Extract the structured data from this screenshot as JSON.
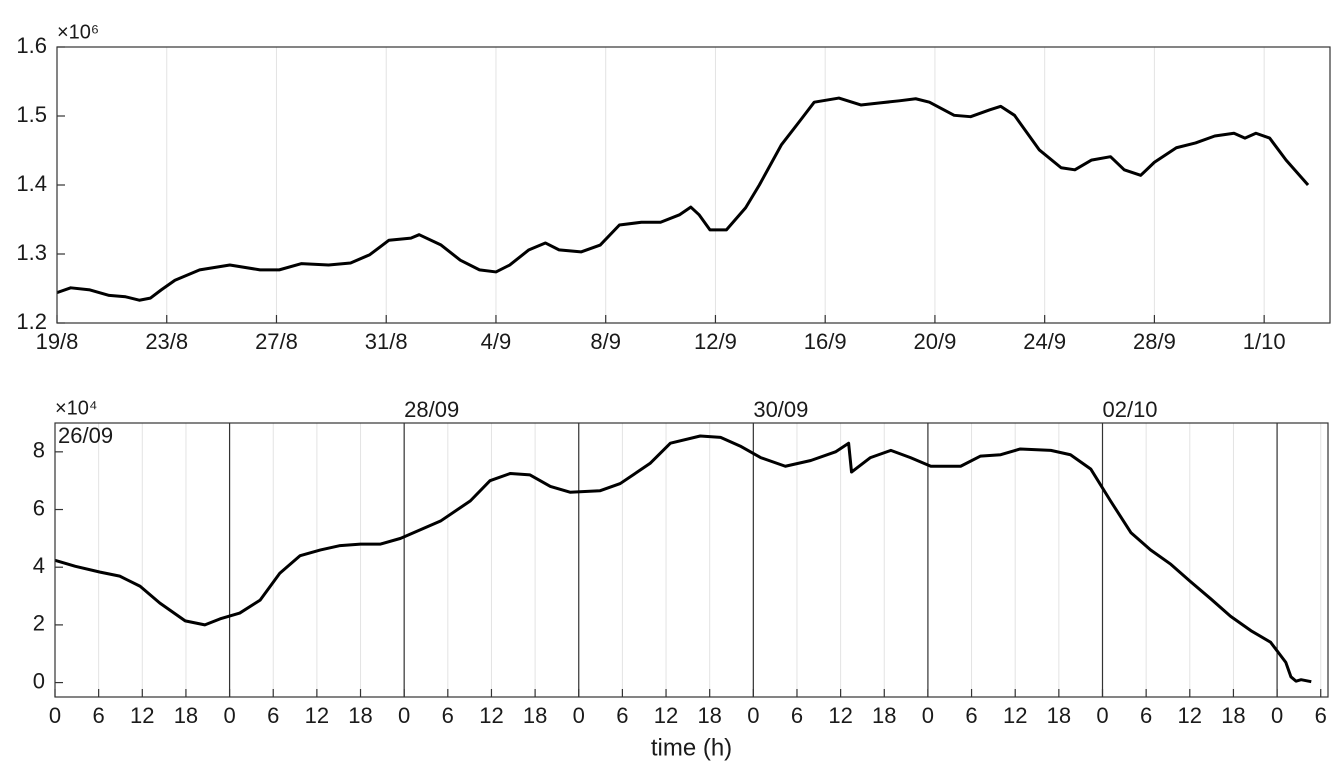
{
  "chart_data": [
    {
      "type": "line",
      "y_exponent_label": "×10⁶",
      "grid": "x",
      "xlim": [
        0,
        46.4
      ],
      "ylim": [
        1200000,
        1600000
      ],
      "xticks": [
        {
          "value": 0,
          "label": "19/8"
        },
        {
          "value": 4,
          "label": "23/8"
        },
        {
          "value": 8,
          "label": "27/8"
        },
        {
          "value": 12,
          "label": "31/8"
        },
        {
          "value": 16,
          "label": "4/9"
        },
        {
          "value": 20,
          "label": "8/9"
        },
        {
          "value": 24,
          "label": "12/9"
        },
        {
          "value": 28,
          "label": "16/9"
        },
        {
          "value": 32,
          "label": "20/9"
        },
        {
          "value": 36,
          "label": "24/9"
        },
        {
          "value": 40,
          "label": "28/9"
        },
        {
          "value": 44,
          "label": "1/10"
        }
      ],
      "yticks": [
        {
          "value": 1200000,
          "label": "1.2"
        },
        {
          "value": 1300000,
          "label": "1.3"
        },
        {
          "value": 1400000,
          "label": "1.4"
        },
        {
          "value": 1500000,
          "label": "1.5"
        },
        {
          "value": 1600000,
          "label": "1.6"
        }
      ],
      "x": [
        0,
        0.5,
        1.2,
        1.9,
        2.5,
        3.0,
        3.4,
        3.8,
        4.3,
        5.2,
        6.3,
        7.4,
        8.1,
        8.9,
        9.9,
        10.7,
        11.4,
        12.1,
        12.9,
        13.2,
        14.0,
        14.7,
        15.4,
        16.0,
        16.5,
        17.2,
        17.8,
        18.3,
        19.1,
        19.8,
        20.5,
        21.3,
        22.0,
        22.7,
        23.1,
        23.4,
        23.8,
        24.4,
        25.1,
        25.6,
        26.4,
        27.1,
        27.6,
        28.5,
        29.3,
        30.0,
        30.7,
        31.3,
        31.8,
        32.7,
        33.3,
        34.0,
        34.4,
        34.9,
        35.8,
        36.6,
        37.1,
        37.7,
        38.4,
        38.9,
        39.5,
        40.0,
        40.8,
        41.5,
        42.2,
        42.9,
        43.3,
        43.7,
        44.2,
        44.8,
        45.6
      ],
      "series": [
        {
          "color": "#000000",
          "values": [
            1244000,
            1251000,
            1248000,
            1240000,
            1238000,
            1233000,
            1236000,
            1248000,
            1262000,
            1277000,
            1284000,
            1277000,
            1277000,
            1286000,
            1284000,
            1287000,
            1299000,
            1320000,
            1323000,
            1328000,
            1313000,
            1291000,
            1277000,
            1274000,
            1284000,
            1306000,
            1316000,
            1306000,
            1303000,
            1313000,
            1342000,
            1346000,
            1346000,
            1357000,
            1368000,
            1357000,
            1335000,
            1335000,
            1367000,
            1400000,
            1458000,
            1494000,
            1520000,
            1526000,
            1516000,
            1519000,
            1522000,
            1525000,
            1520000,
            1501000,
            1499000,
            1509000,
            1514000,
            1501000,
            1451000,
            1425000,
            1422000,
            1436000,
            1441000,
            1422000,
            1414000,
            1433000,
            1454000,
            1461000,
            1471000,
            1475000,
            1468000,
            1475000,
            1468000,
            1436000,
            1400000
          ]
        }
      ]
    },
    {
      "type": "line",
      "y_exponent_label": "×10⁴",
      "x_label": "time (h)",
      "grid": "x",
      "xlim": [
        0,
        175
      ],
      "ylim": [
        -5000,
        90000
      ],
      "xticks": [
        0,
        6,
        12,
        18,
        {
          "value": 24,
          "label": "0"
        },
        {
          "value": 30,
          "label": "6"
        },
        {
          "value": 36,
          "label": "12"
        },
        {
          "value": 42,
          "label": "18"
        },
        {
          "value": 48,
          "label": "0"
        },
        {
          "value": 54,
          "label": "6"
        },
        {
          "value": 60,
          "label": "12"
        },
        {
          "value": 66,
          "label": "18"
        },
        {
          "value": 72,
          "label": "0"
        },
        {
          "value": 78,
          "label": "6"
        },
        {
          "value": 84,
          "label": "12"
        },
        {
          "value": 90,
          "label": "18"
        },
        {
          "value": 96,
          "label": "0"
        },
        {
          "value": 102,
          "label": "6"
        },
        {
          "value": 108,
          "label": "12"
        },
        {
          "value": 114,
          "label": "18"
        },
        {
          "value": 120,
          "label": "0"
        },
        {
          "value": 126,
          "label": "6"
        },
        {
          "value": 132,
          "label": "12"
        },
        {
          "value": 138,
          "label": "18"
        },
        {
          "value": 144,
          "label": "0"
        },
        {
          "value": 150,
          "label": "6"
        },
        {
          "value": 156,
          "label": "12"
        },
        {
          "value": 162,
          "label": "18"
        },
        {
          "value": 168,
          "label": "0"
        },
        {
          "value": 174,
          "label": "6"
        }
      ],
      "yticks": [
        {
          "value": 0,
          "label": "0"
        },
        {
          "value": 20000,
          "label": "2"
        },
        {
          "value": 40000,
          "label": "4"
        },
        {
          "value": 60000,
          "label": "6"
        },
        {
          "value": 80000,
          "label": "8"
        }
      ],
      "day_lines": [
        24,
        48,
        72,
        96,
        120,
        144,
        168
      ],
      "annotations": [
        {
          "text": "26/09",
          "x": 0
        },
        {
          "text": "28/09",
          "x": 48
        },
        {
          "text": "30/09",
          "x": 96
        },
        {
          "text": "02/10",
          "x": 144
        }
      ],
      "x": [
        0,
        2.8,
        6.2,
        8.9,
        11.7,
        14.4,
        17.9,
        20.6,
        22.7,
        25.4,
        28.2,
        30.9,
        33.7,
        36.5,
        39.2,
        42.0,
        44.7,
        47.5,
        53.0,
        57.1,
        59.8,
        62.6,
        65.3,
        68.1,
        70.8,
        74.9,
        77.7,
        81.8,
        84.6,
        88.7,
        91.5,
        94.2,
        97.0,
        100.4,
        103.9,
        107.3,
        109.1,
        109.5,
        112.1,
        114.9,
        117.6,
        120.4,
        124.5,
        127.2,
        130.0,
        132.7,
        136.9,
        139.6,
        142.4,
        145.1,
        147.9,
        150.6,
        153.4,
        156.1,
        158.9,
        161.6,
        164.4,
        167.1,
        169.2,
        169.9,
        170.6,
        171.3,
        172.7
      ],
      "series": [
        {
          "color": "#000000",
          "values": [
            42400,
            40300,
            38300,
            36900,
            33400,
            27600,
            21400,
            20000,
            22100,
            24100,
            28600,
            37900,
            44000,
            46000,
            47500,
            48000,
            48000,
            50000,
            56000,
            63000,
            70000,
            72500,
            72000,
            68000,
            66000,
            66500,
            69000,
            76000,
            83000,
            85500,
            85000,
            82000,
            78000,
            75000,
            77000,
            80000,
            83000,
            73000,
            78000,
            80500,
            78000,
            75000,
            75000,
            78500,
            79000,
            81000,
            80500,
            79000,
            74000,
            63000,
            52000,
            46000,
            41000,
            35000,
            29000,
            23000,
            18000,
            14000,
            7000,
            2000,
            500,
            1000,
            300
          ]
        }
      ]
    }
  ]
}
